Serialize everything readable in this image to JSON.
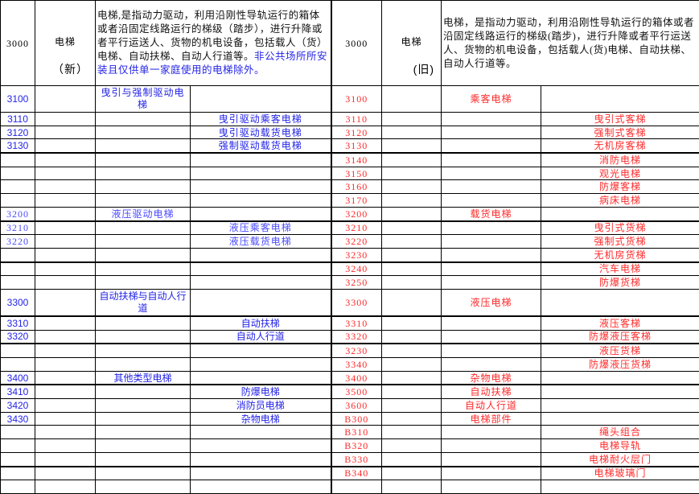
{
  "colors": {
    "new_text": "#2424e8",
    "old_text": "#ff2a2a",
    "border": "#000000"
  },
  "header": {
    "new": {
      "code": "3000",
      "name": "电梯",
      "tag": "（新）",
      "description": "电梯,是指动力驱动，利用沿刚性导轨运行的箱体或者沿固定线路运行的梯级（踏步），进行升降或者平行运送人、货物的机电设备，包括载人（货）电梯、自动扶梯、自动人行道等。",
      "description_note": "非公共场所所安装且仅供单一家庭使用的电梯除外。"
    },
    "old": {
      "code": "3000",
      "name": "电梯",
      "tag": "(旧)",
      "description": "电梯，是指动力驱动，利用沿刚性导轨运行的箱体或者沿固定线路运行的梯级(踏步)，进行升降或者平行运送人、货物的机电设备，包括载人(货)电梯、自动扶梯、自动人行道等。"
    }
  },
  "rows": [
    {
      "nc": "3100",
      "nb": "",
      "nc2": "曳引与强制驱动电梯",
      "nd": "",
      "oc": "3100",
      "of": "",
      "og": "乘客电梯",
      "oh": ""
    },
    {
      "nc": "3110",
      "nb": "",
      "nc2": "",
      "nd": "曳引驱动乘客电梯",
      "oc": "3110",
      "of": "",
      "og": "",
      "oh": "曳引式客梯"
    },
    {
      "nc": "3120",
      "nb": "",
      "nc2": "",
      "nd": "曳引驱动载货电梯",
      "oc": "3120",
      "of": "",
      "og": "",
      "oh": "强制式客梯"
    },
    {
      "nc": "3130",
      "nb": "",
      "nc2": "",
      "nd": "强制驱动载货电梯",
      "oc": "3130",
      "of": "",
      "og": "",
      "oh": "无机房客梯"
    },
    {
      "nc": "",
      "nb": "",
      "nc2": "",
      "nd": "",
      "oc": "3140",
      "of": "",
      "og": "",
      "oh": "消防电梯"
    },
    {
      "nc": "",
      "nb": "",
      "nc2": "",
      "nd": "",
      "oc": "3150",
      "of": "",
      "og": "",
      "oh": "观光电梯"
    },
    {
      "nc": "",
      "nb": "",
      "nc2": "",
      "nd": "",
      "oc": "3160",
      "of": "",
      "og": "",
      "oh": "防爆客梯"
    },
    {
      "nc": "",
      "nb": "",
      "nc2": "",
      "nd": "",
      "oc": "3170",
      "of": "",
      "og": "",
      "oh": "病床电梯"
    },
    {
      "nc": "3200",
      "nb": "",
      "nc2": "液压驱动电梯",
      "nd": "",
      "oc": "3200",
      "of": "",
      "og": "载货电梯",
      "oh": ""
    },
    {
      "nc": "3210",
      "nb": "",
      "nc2": "",
      "nd": "液压乘客电梯",
      "oc": "3210",
      "of": "",
      "og": "",
      "oh": "曳引式货梯"
    },
    {
      "nc": "3220",
      "nb": "",
      "nc2": "",
      "nd": "液压载货电梯",
      "oc": "3220",
      "of": "",
      "og": "",
      "oh": "强制式货梯"
    },
    {
      "nc": "",
      "nb": "",
      "nc2": "",
      "nd": "",
      "oc": "3230",
      "of": "",
      "og": "",
      "oh": "无机房货梯"
    },
    {
      "nc": "",
      "nb": "",
      "nc2": "",
      "nd": "",
      "oc": "3240",
      "of": "",
      "og": "",
      "oh": "汽车电梯"
    },
    {
      "nc": "",
      "nb": "",
      "nc2": "",
      "nd": "",
      "oc": "3250",
      "of": "",
      "og": "",
      "oh": "防爆货梯"
    },
    {
      "nc": "3300",
      "nb": "",
      "nc2": "自动扶梯与自动人行道",
      "nd": "",
      "oc": "3300",
      "of": "",
      "og": "液压电梯",
      "oh": ""
    },
    {
      "nc": "3310",
      "nb": "",
      "nc2": "",
      "nd": "自动扶梯",
      "oc": "3310",
      "of": "",
      "og": "",
      "oh": "液压客梯"
    },
    {
      "nc": "3320",
      "nb": "",
      "nc2": "",
      "nd": "自动人行道",
      "oc": "3320",
      "of": "",
      "og": "",
      "oh": "防爆液压客梯"
    },
    {
      "nc": "",
      "nb": "",
      "nc2": "",
      "nd": "",
      "oc": "3230",
      "of": "",
      "og": "",
      "oh": "液压货梯"
    },
    {
      "nc": "",
      "nb": "",
      "nc2": "",
      "nd": "",
      "oc": "3340",
      "of": "",
      "og": "",
      "oh": "防爆液压货梯"
    },
    {
      "nc": "3400",
      "nb": "",
      "nc2": "其他类型电梯",
      "nd": "",
      "oc": "3400",
      "of": "",
      "og": "杂物电梯",
      "oh": ""
    },
    {
      "nc": "3410",
      "nb": "",
      "nc2": "",
      "nd": "防爆电梯",
      "oc": "3500",
      "of": "",
      "og": "自动扶梯",
      "oh": ""
    },
    {
      "nc": "3420",
      "nb": "",
      "nc2": "",
      "nd": "消防员电梯",
      "oc": "3600",
      "of": "",
      "og": "自动人行道",
      "oh": ""
    },
    {
      "nc": "3430",
      "nb": "",
      "nc2": "",
      "nd": "杂物电梯",
      "oc": "B300",
      "of": "",
      "og": "电梯部件",
      "oh": ""
    },
    {
      "nc": "",
      "nb": "",
      "nc2": "",
      "nd": "",
      "oc": "B310",
      "of": "",
      "og": "",
      "oh": "绳头组合"
    },
    {
      "nc": "",
      "nb": "",
      "nc2": "",
      "nd": "",
      "oc": "B320",
      "of": "",
      "og": "",
      "oh": "电梯导轨"
    },
    {
      "nc": "",
      "nb": "",
      "nc2": "",
      "nd": "",
      "oc": "B330",
      "of": "",
      "og": "",
      "oh": "电梯耐火层门"
    },
    {
      "nc": "",
      "nb": "",
      "nc2": "",
      "nd": "",
      "oc": "B340",
      "of": "",
      "og": "",
      "oh": "电梯玻璃门"
    },
    {
      "nc": "",
      "nb": "",
      "nc2": "",
      "nd": "",
      "oc": "",
      "of": "",
      "og": "",
      "oh": ""
    }
  ]
}
